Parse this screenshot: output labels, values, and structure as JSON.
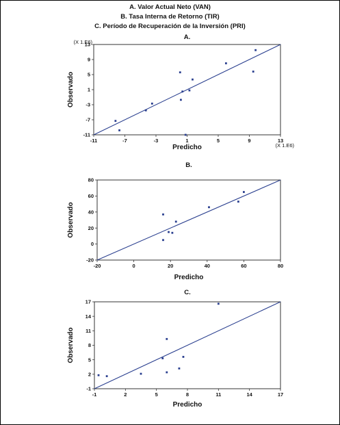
{
  "header": {
    "line_a": "A. Valor Actual Neto (VAN)",
    "line_b": "B. Tasa Interna de Retorno (TIR)",
    "line_c": "C. Período de Recuperación de la Inversión (PRI)"
  },
  "chart_data": [
    {
      "type": "scatter",
      "title": "A.",
      "xlabel": "Predicho",
      "ylabel": "Observado",
      "scale_note_x": "(X 1.E6)",
      "scale_note_y": "(X 1.E6)",
      "xlim": [
        -11,
        13
      ],
      "ylim": [
        -11,
        13
      ],
      "xticks": [
        -11,
        -7,
        -3,
        1,
        5,
        9,
        13
      ],
      "yticks": [
        -11,
        -7,
        -3,
        1,
        5,
        9,
        13
      ],
      "fit_line": [
        [
          -11,
          -11
        ],
        [
          13,
          13
        ]
      ],
      "grid": false,
      "points": [
        {
          "x": -8.2,
          "y": -7.3
        },
        {
          "x": -7.7,
          "y": -9.8
        },
        {
          "x": -4.3,
          "y": -4.5
        },
        {
          "x": -3.5,
          "y": -2.7
        },
        {
          "x": 0.1,
          "y": 5.6
        },
        {
          "x": 0.2,
          "y": -1.7
        },
        {
          "x": 0.4,
          "y": 0.5
        },
        {
          "x": 1.3,
          "y": 0.8
        },
        {
          "x": 1.7,
          "y": 3.7
        },
        {
          "x": 0.8,
          "y": -11.0
        },
        {
          "x": 6.0,
          "y": 8.0
        },
        {
          "x": 9.5,
          "y": 5.8
        },
        {
          "x": 9.8,
          "y": 11.5
        }
      ]
    },
    {
      "type": "scatter",
      "title": "B.",
      "xlabel": "Predicho",
      "ylabel": "Observado",
      "xlim": [
        -20,
        80
      ],
      "ylim": [
        -20,
        80
      ],
      "xticks": [
        -20,
        0,
        20,
        40,
        60,
        80
      ],
      "yticks": [
        -20,
        0,
        20,
        40,
        60,
        80
      ],
      "fit_line": [
        [
          -20,
          -20
        ],
        [
          80,
          80
        ]
      ],
      "grid": false,
      "points": [
        {
          "x": 16,
          "y": 37
        },
        {
          "x": 16,
          "y": 5
        },
        {
          "x": 19,
          "y": 15
        },
        {
          "x": 21,
          "y": 14
        },
        {
          "x": 23,
          "y": 28
        },
        {
          "x": 41,
          "y": 46
        },
        {
          "x": 57,
          "y": 53
        },
        {
          "x": 60,
          "y": 65
        }
      ]
    },
    {
      "type": "scatter",
      "title": "C.",
      "xlabel": "Predicho",
      "ylabel": "Observado",
      "xlim": [
        -1,
        17
      ],
      "ylim": [
        -1,
        17
      ],
      "xticks": [
        -1,
        2,
        5,
        8,
        11,
        14,
        17
      ],
      "yticks": [
        -1,
        2,
        5,
        8,
        11,
        14,
        17
      ],
      "fit_line": [
        [
          -1,
          -1
        ],
        [
          17,
          17
        ]
      ],
      "grid": false,
      "points": [
        {
          "x": -0.6,
          "y": 1.8
        },
        {
          "x": 0.2,
          "y": 1.6
        },
        {
          "x": 3.5,
          "y": 2.1
        },
        {
          "x": 5.6,
          "y": 5.3
        },
        {
          "x": 6.0,
          "y": 9.3
        },
        {
          "x": 6.0,
          "y": 2.4
        },
        {
          "x": 7.2,
          "y": 3.2
        },
        {
          "x": 7.6,
          "y": 5.6
        },
        {
          "x": 11.0,
          "y": 16.6
        }
      ]
    }
  ]
}
